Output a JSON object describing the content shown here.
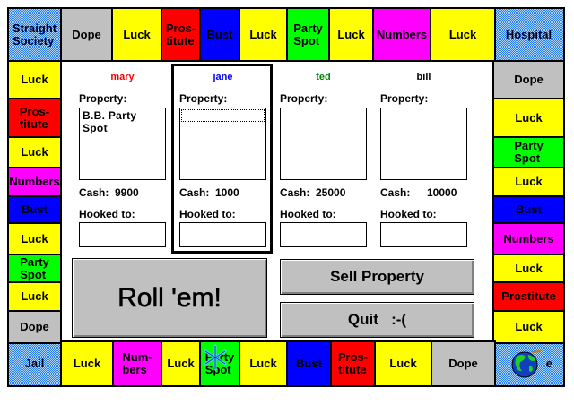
{
  "colors": {
    "luck": "#ffff00",
    "prostitute": "#ff0000",
    "bust": "#0000ff",
    "party": "#00ff00",
    "numbers": "#ff00ff",
    "dope": "#c0c0c0",
    "mary": "#ff0000",
    "jane": "#0000ff",
    "ted": "#008000",
    "bill": "#000000"
  },
  "board": {
    "corners": {
      "top_left": "Straight\nSociety",
      "top_right": "Hospital",
      "bottom_left": "Jail",
      "bottom_right": "e"
    },
    "top": [
      {
        "label": "Dope",
        "type": "dope"
      },
      {
        "label": "Luck",
        "type": "luck"
      },
      {
        "label": "Pros-\ntitute",
        "type": "prostitute"
      },
      {
        "label": "Bust",
        "type": "bust"
      },
      {
        "label": "Luck",
        "type": "luck"
      },
      {
        "label": "Party\nSpot",
        "type": "party"
      },
      {
        "label": "Luck",
        "type": "luck"
      },
      {
        "label": "Numbers",
        "type": "numbers"
      },
      {
        "label": "Luck",
        "type": "luck"
      }
    ],
    "left": [
      {
        "label": "Luck",
        "type": "luck"
      },
      {
        "label": "Pros-\ntitute",
        "type": "prostitute"
      },
      {
        "label": "Luck",
        "type": "luck"
      },
      {
        "label": "Numbers",
        "type": "numbers"
      },
      {
        "label": "Bust",
        "type": "bust"
      },
      {
        "label": "Luck",
        "type": "luck"
      },
      {
        "label": "Party\nSpot",
        "type": "party"
      },
      {
        "label": "Luck",
        "type": "luck"
      },
      {
        "label": "Dope",
        "type": "dope"
      }
    ],
    "right": [
      {
        "label": "Dope",
        "type": "dope"
      },
      {
        "label": "Luck",
        "type": "luck"
      },
      {
        "label": "Party\nSpot",
        "type": "party"
      },
      {
        "label": "Luck",
        "type": "luck"
      },
      {
        "label": "Bust",
        "type": "bust"
      },
      {
        "label": "Numbers",
        "type": "numbers"
      },
      {
        "label": "Luck",
        "type": "luck"
      },
      {
        "label": "Prostitute",
        "type": "prostitute"
      },
      {
        "label": "Luck",
        "type": "luck"
      }
    ],
    "bottom": [
      {
        "label": "Luck",
        "type": "luck"
      },
      {
        "label": "Num-\nbers",
        "type": "numbers"
      },
      {
        "label": "Luck",
        "type": "luck"
      },
      {
        "label": "Party\nSpot",
        "type": "party"
      },
      {
        "label": "Luck",
        "type": "luck"
      },
      {
        "label": "Bust",
        "type": "bust"
      },
      {
        "label": "Pros-\ntitute",
        "type": "prostitute"
      },
      {
        "label": "Luck",
        "type": "luck"
      },
      {
        "label": "Dope",
        "type": "dope"
      }
    ],
    "tokens": {
      "snowflake": "snowflake-icon",
      "globe": "globe-icon"
    }
  },
  "labels": {
    "property": "Property:",
    "cash": "Cash:",
    "hooked": "Hooked to:"
  },
  "players": [
    {
      "name": "mary",
      "cash": "9900",
      "properties": [
        "B.B. Party Spot"
      ],
      "hooked_to": ""
    },
    {
      "name": "jane",
      "cash": "1000",
      "properties": [],
      "hooked_to": "",
      "active": true
    },
    {
      "name": "ted",
      "cash": "25000",
      "properties": [],
      "hooked_to": ""
    },
    {
      "name": "bill",
      "cash": "10000",
      "properties": [],
      "hooked_to": ""
    }
  ],
  "buttons": {
    "roll": "Roll 'em!",
    "sell": "Sell Property",
    "quit": "Quit   :-("
  }
}
